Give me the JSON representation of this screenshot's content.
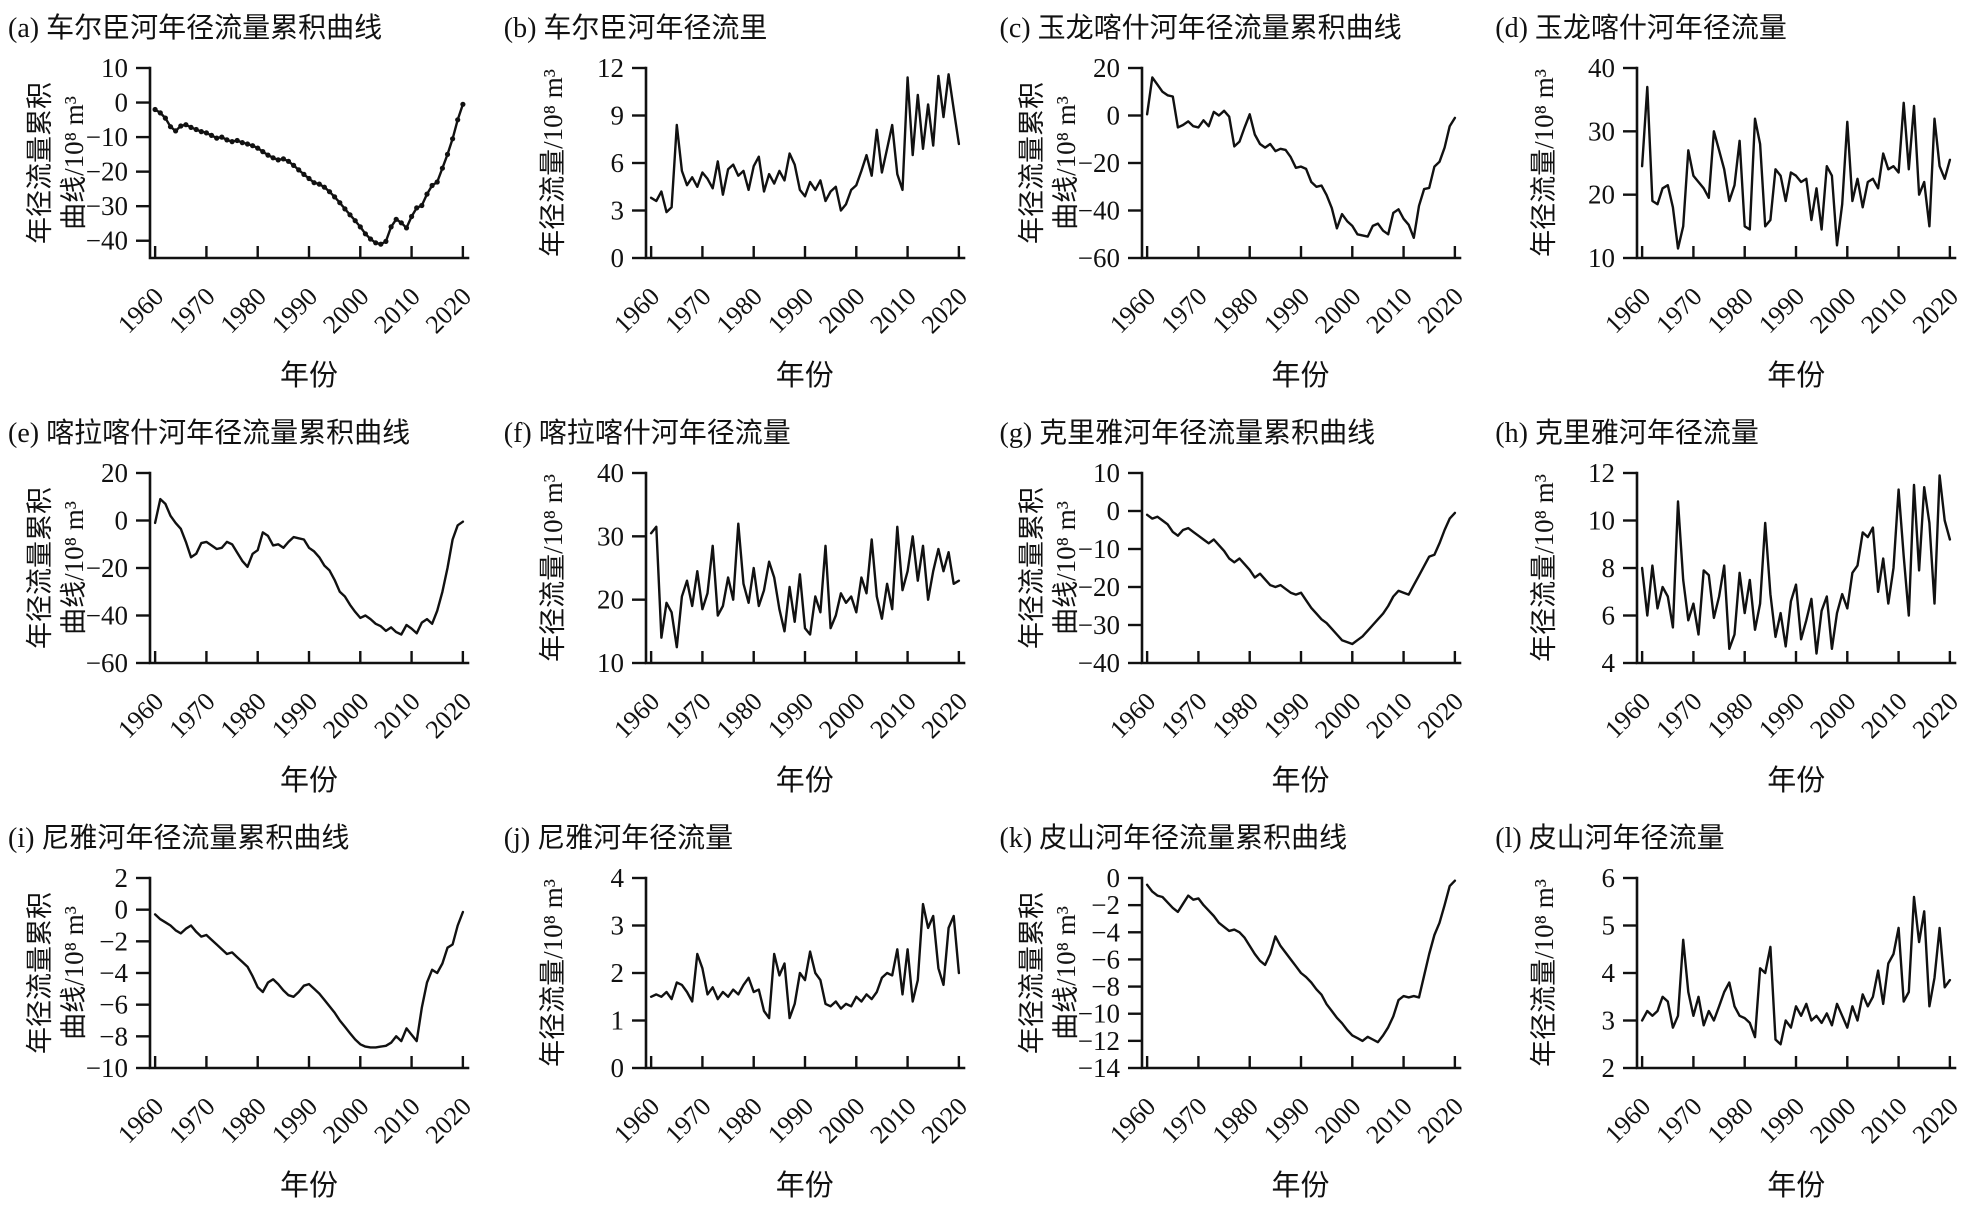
{
  "style": {
    "line_color": "#111111",
    "background": "#ffffff"
  },
  "x_axis": {
    "label": "年份",
    "ticks": [
      1960,
      1970,
      1980,
      1990,
      2000,
      2010,
      2020
    ],
    "range": [
      1959,
      2021
    ]
  },
  "chart_data": [
    {
      "id": "a",
      "panel": "(a)",
      "type": "line",
      "title": "(a) 车尔臣河年径流量累积曲线",
      "ylabel_lines": [
        "年径流量累积",
        "曲线/10⁸ m³"
      ],
      "ylim": [
        -45,
        10
      ],
      "y_ticks": [
        10,
        0,
        -10,
        -20,
        -30,
        -40
      ],
      "markers": true,
      "years": {
        "start": 1960,
        "end": 2020
      },
      "values": [
        -2,
        -3,
        -4.5,
        -7,
        -8.2,
        -6.8,
        -6.4,
        -7.2,
        -7.8,
        -8.4,
        -8.8,
        -9.5,
        -10.3,
        -10,
        -10.8,
        -11.3,
        -11,
        -11.6,
        -12,
        -12.5,
        -13.2,
        -14.2,
        -15.2,
        -16,
        -16.6,
        -16.3,
        -17,
        -18.2,
        -19.5,
        -20.8,
        -22,
        -23.2,
        -23.6,
        -24.5,
        -25.8,
        -27.3,
        -29,
        -30.8,
        -32.5,
        -34.2,
        -36,
        -38,
        -39.5,
        -40.6,
        -41,
        -40.2,
        -36,
        -33.8,
        -34.8,
        -36.3,
        -33,
        -30.5,
        -29.8,
        -26.5,
        -24,
        -23,
        -19,
        -15,
        -10.5,
        -5,
        -0.5
      ]
    },
    {
      "id": "b",
      "panel": "(b)",
      "type": "line",
      "title": "(b) 车尔臣河年径流里",
      "ylabel_lines": [
        "年径流量/10⁸ m³"
      ],
      "ylim": [
        0,
        12
      ],
      "y_ticks": [
        0,
        3,
        6,
        9,
        12
      ],
      "markers": false,
      "years": {
        "start": 1960,
        "end": 2020
      },
      "values": [
        3.8,
        3.6,
        4.2,
        2.9,
        3.2,
        8.4,
        5.5,
        4.6,
        5.1,
        4.5,
        5.4,
        5,
        4.4,
        6.1,
        4,
        5.6,
        5.9,
        5.2,
        5.5,
        4.3,
        5.8,
        6.4,
        4.2,
        5.3,
        4.7,
        5.5,
        4.9,
        6.6,
        5.9,
        4.3,
        3.9,
        4.8,
        4.3,
        4.9,
        3.6,
        4.2,
        4.5,
        3,
        3.4,
        4.3,
        4.6,
        5.5,
        6.5,
        5.2,
        8.1,
        5.4,
        6.9,
        8.4,
        5.3,
        4.3,
        11.4,
        6.5,
        10.3,
        6.9,
        9.7,
        7.1,
        11.5,
        8.9,
        11.6,
        9.4,
        7.2
      ]
    },
    {
      "id": "c",
      "panel": "(c)",
      "type": "line",
      "title": "(c) 玉龙喀什河年径流量累积曲线",
      "ylabel_lines": [
        "年径流量累积",
        "曲线/10⁸ m³"
      ],
      "ylim": [
        -60,
        20
      ],
      "y_ticks": [
        20,
        0,
        -20,
        -40,
        -60
      ],
      "markers": false,
      "years": {
        "start": 1960,
        "end": 2020
      },
      "values": [
        0.5,
        16,
        13,
        10,
        8.5,
        8,
        -5,
        -4,
        -2.5,
        -4.5,
        -5,
        -2,
        -4.5,
        1.5,
        0,
        2,
        -0.5,
        -13,
        -11,
        -5,
        0.5,
        -8,
        -12,
        -13.5,
        -12,
        -15,
        -14,
        -14.5,
        -17.5,
        -22,
        -21.5,
        -22.5,
        -28,
        -30,
        -29.5,
        -33.5,
        -39,
        -47.5,
        -41.5,
        -44.5,
        -46.5,
        -50,
        -50.5,
        -51,
        -46.5,
        -45.5,
        -48.5,
        -50,
        -41,
        -39.5,
        -43.5,
        -46,
        -51.5,
        -38,
        -31,
        -30.5,
        -21.5,
        -19.5,
        -13.5,
        -4.5,
        -1
      ]
    },
    {
      "id": "d",
      "panel": "(d)",
      "type": "line",
      "title": "(d) 玉龙喀什河年径流量",
      "ylabel_lines": [
        "年径流量/10⁸ m³"
      ],
      "ylim": [
        10,
        40
      ],
      "y_ticks": [
        10,
        20,
        30,
        40
      ],
      "markers": false,
      "years": {
        "start": 1960,
        "end": 2020
      },
      "values": [
        24.5,
        37,
        19,
        18.5,
        21,
        21.5,
        18,
        11.5,
        15,
        27,
        23,
        22,
        21,
        19.5,
        30,
        27,
        24,
        19,
        21.5,
        28.5,
        15,
        14.5,
        32,
        28,
        15,
        16,
        24,
        23,
        19,
        23.5,
        23,
        22,
        22.5,
        16,
        21,
        14.5,
        24.5,
        23,
        12,
        18.5,
        31.5,
        19,
        22.5,
        18,
        22,
        22.5,
        21,
        26.5,
        24,
        24.5,
        23.5,
        34.5,
        24,
        34,
        20,
        22,
        15,
        32,
        24.5,
        22.5,
        25.5
      ]
    },
    {
      "id": "e",
      "panel": "(e)",
      "type": "line",
      "title": "(e) 喀拉喀什河年径流量累积曲线",
      "ylabel_lines": [
        "年径流量累积",
        "曲线/10⁸ m³"
      ],
      "ylim": [
        -60,
        20
      ],
      "y_ticks": [
        20,
        0,
        -20,
        -40,
        -60
      ],
      "markers": false,
      "years": {
        "start": 1960,
        "end": 2020
      },
      "values": [
        -1,
        9,
        7,
        2,
        -1,
        -3.5,
        -9,
        -15.5,
        -14,
        -9.5,
        -9,
        -10.5,
        -12,
        -11.5,
        -9,
        -10,
        -13.5,
        -17,
        -19.5,
        -14,
        -12.5,
        -5,
        -6.5,
        -10.5,
        -10,
        -11.5,
        -9,
        -7,
        -7.5,
        -8,
        -11.5,
        -13,
        -15.5,
        -19,
        -21,
        -25,
        -30,
        -32,
        -35.5,
        -38.5,
        -41,
        -40,
        -41.5,
        -43.5,
        -44.5,
        -46.5,
        -45,
        -47,
        -48,
        -44,
        -45.5,
        -47.5,
        -43,
        -41.5,
        -43.5,
        -38,
        -30,
        -20,
        -8,
        -2,
        -0.5
      ]
    },
    {
      "id": "f",
      "panel": "(f)",
      "type": "line",
      "title": "(f) 喀拉喀什河年径流量",
      "ylabel_lines": [
        "年径流量/10⁸ m³"
      ],
      "ylim": [
        10,
        40
      ],
      "y_ticks": [
        10,
        20,
        30,
        40
      ],
      "markers": false,
      "years": {
        "start": 1960,
        "end": 2020
      },
      "values": [
        30.5,
        31.5,
        14,
        19.5,
        18,
        12.5,
        20.5,
        23,
        19,
        24.5,
        18.5,
        21,
        28.5,
        17.5,
        19,
        23.5,
        20,
        32,
        22.5,
        19.5,
        25,
        19,
        21.5,
        26,
        23.5,
        18.5,
        15,
        22,
        16.5,
        24,
        15.5,
        14.5,
        20.5,
        18,
        28.5,
        15.5,
        17.5,
        21,
        19.5,
        20.5,
        18,
        23.5,
        21,
        29.5,
        20.5,
        17,
        22.5,
        18.5,
        31.5,
        21.5,
        24.5,
        30,
        23,
        28.5,
        20,
        24.5,
        28,
        24.5,
        27.5,
        22.5,
        23
      ]
    },
    {
      "id": "g",
      "panel": "(g)",
      "type": "line",
      "title": "(g) 克里雅河年径流量累积曲线",
      "ylabel_lines": [
        "年径流量累积",
        "曲线/10⁸ m³"
      ],
      "ylim": [
        -40,
        10
      ],
      "y_ticks": [
        10,
        0,
        -10,
        -20,
        -30,
        -40
      ],
      "markers": false,
      "years": {
        "start": 1960,
        "end": 2020
      },
      "values": [
        -1,
        -2,
        -1.5,
        -2.5,
        -3.5,
        -5.5,
        -6.5,
        -5,
        -4.5,
        -5.5,
        -6.5,
        -7.5,
        -8.5,
        -7.5,
        -9,
        -10.5,
        -12.5,
        -13.5,
        -12.5,
        -14,
        -15.5,
        -17.5,
        -16.5,
        -18,
        -19.5,
        -20,
        -19.5,
        -20.5,
        -21.5,
        -22,
        -21.5,
        -23.5,
        -25.5,
        -27,
        -28.5,
        -29.5,
        -31,
        -32.5,
        -34,
        -34.5,
        -35,
        -34,
        -33,
        -31.5,
        -30,
        -28.5,
        -27,
        -25,
        -22.5,
        -21,
        -21.5,
        -22,
        -19.5,
        -17,
        -14.5,
        -12,
        -11.5,
        -8.5,
        -5,
        -2,
        -0.5
      ]
    },
    {
      "id": "h",
      "panel": "(h)",
      "type": "line",
      "title": "(h) 克里雅河年径流量",
      "ylabel_lines": [
        "年径流量/10⁸ m³"
      ],
      "ylim": [
        4,
        12
      ],
      "y_ticks": [
        4,
        6,
        8,
        10,
        12
      ],
      "markers": false,
      "years": {
        "start": 1960,
        "end": 2020
      },
      "values": [
        8,
        6,
        8.1,
        6.3,
        7.2,
        6.8,
        5.5,
        10.8,
        7.5,
        5.8,
        6.5,
        5.2,
        7.9,
        7.7,
        5.9,
        6.8,
        8.1,
        4.6,
        5.2,
        7.8,
        6.1,
        7.5,
        5.4,
        6.5,
        9.9,
        6.9,
        5.1,
        6.1,
        4.7,
        6.6,
        7.3,
        5,
        5.8,
        6.7,
        4.4,
        6.2,
        6.8,
        4.6,
        6.1,
        6.9,
        6.3,
        7.8,
        8.1,
        9.5,
        9.3,
        9.7,
        7,
        8.4,
        6.5,
        8,
        11.3,
        8.5,
        6,
        11.5,
        7.9,
        11.4,
        9.9,
        6.5,
        11.9,
        10,
        9.2
      ]
    },
    {
      "id": "i",
      "panel": "(i)",
      "type": "line",
      "title": "(i) 尼雅河年径流量累积曲线",
      "ylabel_lines": [
        "年径流量累积",
        "曲线/10⁸ m³"
      ],
      "ylim": [
        -10,
        2
      ],
      "y_ticks": [
        2,
        0,
        -2,
        -4,
        -6,
        -8,
        -10
      ],
      "markers": false,
      "years": {
        "start": 1960,
        "end": 2020
      },
      "values": [
        -0.3,
        -0.6,
        -0.8,
        -1,
        -1.3,
        -1.5,
        -1.2,
        -1,
        -1.4,
        -1.7,
        -1.6,
        -1.9,
        -2.2,
        -2.5,
        -2.8,
        -2.7,
        -3,
        -3.3,
        -3.6,
        -4.2,
        -4.9,
        -5.2,
        -4.6,
        -4.4,
        -4.7,
        -5.1,
        -5.4,
        -5.5,
        -5.2,
        -4.8,
        -4.7,
        -5,
        -5.3,
        -5.7,
        -6.1,
        -6.5,
        -7,
        -7.4,
        -7.8,
        -8.2,
        -8.5,
        -8.65,
        -8.7,
        -8.7,
        -8.65,
        -8.6,
        -8.4,
        -8,
        -8.3,
        -7.5,
        -7.9,
        -8.3,
        -6.2,
        -4.6,
        -3.8,
        -4,
        -3.4,
        -2.4,
        -2.2,
        -1,
        -0.15
      ]
    },
    {
      "id": "j",
      "panel": "(j)",
      "type": "line",
      "title": "(j) 尼雅河年径流量",
      "ylabel_lines": [
        "年径流量/10⁸ m³"
      ],
      "ylim": [
        0,
        4
      ],
      "y_ticks": [
        0,
        1,
        2,
        3,
        4
      ],
      "markers": false,
      "years": {
        "start": 1960,
        "end": 2020
      },
      "values": [
        1.5,
        1.55,
        1.5,
        1.6,
        1.45,
        1.8,
        1.75,
        1.6,
        1.4,
        2.4,
        2.1,
        1.55,
        1.7,
        1.45,
        1.6,
        1.5,
        1.65,
        1.55,
        1.75,
        1.9,
        1.6,
        1.65,
        1.2,
        1.05,
        2.4,
        1.95,
        2.2,
        1.05,
        1.35,
        2,
        1.85,
        2.45,
        2,
        1.85,
        1.35,
        1.3,
        1.4,
        1.25,
        1.35,
        1.3,
        1.5,
        1.4,
        1.55,
        1.45,
        1.6,
        1.9,
        2,
        1.95,
        2.5,
        1.55,
        2.5,
        1.4,
        1.85,
        3.45,
        2.95,
        3.2,
        2.1,
        1.75,
        2.95,
        3.2,
        2
      ]
    },
    {
      "id": "k",
      "panel": "(k)",
      "type": "line",
      "title": "(k) 皮山河年径流量累积曲线",
      "ylabel_lines": [
        "年径流量累积",
        "曲线/10⁸ m³"
      ],
      "ylim": [
        -14,
        0
      ],
      "y_ticks": [
        0,
        -2,
        -4,
        -6,
        -8,
        -10,
        -12,
        -14
      ],
      "markers": false,
      "years": {
        "start": 1960,
        "end": 2020
      },
      "values": [
        -0.5,
        -1,
        -1.3,
        -1.4,
        -1.8,
        -2.2,
        -2.5,
        -1.9,
        -1.3,
        -1.6,
        -1.5,
        -2,
        -2.4,
        -2.8,
        -3.3,
        -3.6,
        -3.9,
        -3.8,
        -4,
        -4.4,
        -5,
        -5.6,
        -6.1,
        -6.4,
        -5.6,
        -4.3,
        -5,
        -5.5,
        -6,
        -6.5,
        -7,
        -7.3,
        -7.7,
        -8.2,
        -8.6,
        -9.3,
        -9.8,
        -10.3,
        -10.7,
        -11.2,
        -11.6,
        -11.8,
        -12,
        -11.7,
        -11.9,
        -12.1,
        -11.6,
        -11,
        -10.2,
        -9,
        -8.7,
        -8.8,
        -8.7,
        -8.8,
        -7.2,
        -5.6,
        -4.2,
        -3.3,
        -2,
        -0.6,
        -0.2
      ]
    },
    {
      "id": "l",
      "panel": "(l)",
      "type": "line",
      "title": "(l) 皮山河年径流量",
      "ylabel_lines": [
        "年径流量/10⁸ m³"
      ],
      "ylim": [
        2,
        6
      ],
      "y_ticks": [
        2,
        3,
        4,
        5,
        6
      ],
      "markers": false,
      "years": {
        "start": 1960,
        "end": 2020
      },
      "values": [
        3,
        3.2,
        3.1,
        3.2,
        3.5,
        3.4,
        2.85,
        3.1,
        4.7,
        3.6,
        3.1,
        3.5,
        2.9,
        3.2,
        3,
        3.3,
        3.6,
        3.8,
        3.3,
        3.1,
        3.05,
        2.95,
        2.65,
        4.1,
        4,
        4.55,
        2.6,
        2.5,
        3,
        2.85,
        3.3,
        3.1,
        3.35,
        3,
        3.1,
        2.95,
        3.15,
        2.9,
        3.35,
        3.1,
        2.85,
        3.3,
        3,
        3.55,
        3.3,
        3.5,
        4.05,
        3.35,
        4.2,
        4.4,
        4.95,
        3.4,
        3.6,
        5.6,
        4.65,
        5.3,
        3.3,
        3.9,
        4.95,
        3.7,
        3.85
      ]
    }
  ]
}
